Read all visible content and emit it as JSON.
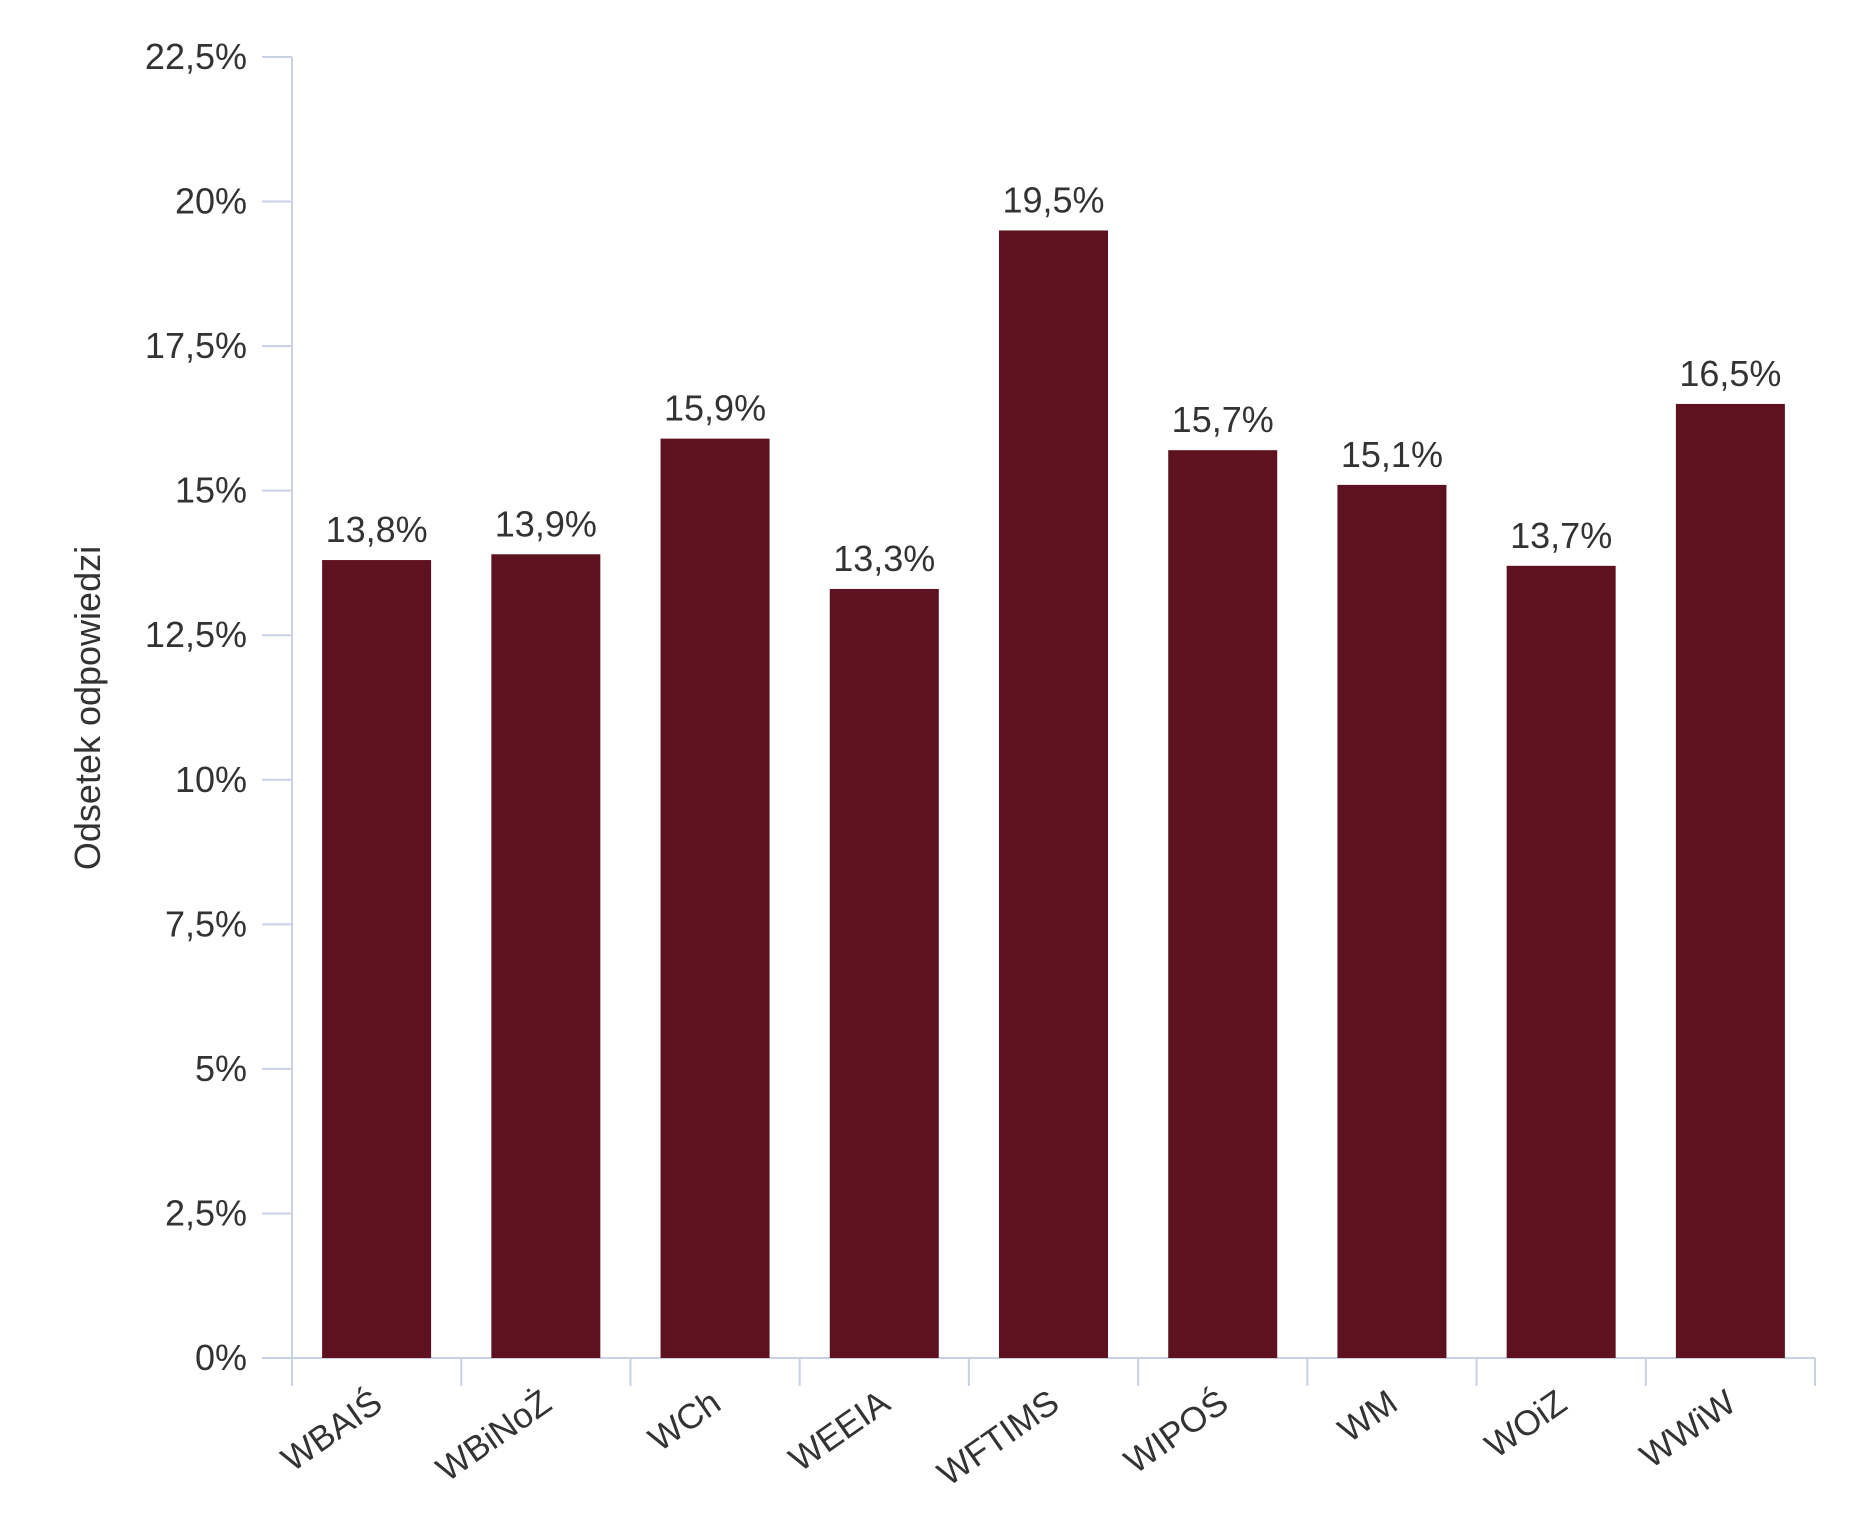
{
  "chart_data": {
    "type": "bar",
    "title": "",
    "xlabel": "",
    "ylabel": "Odsetek odpowiedzi",
    "categories": [
      "WBAIŚ",
      "WBiNoŻ",
      "WCh",
      "WEEIA",
      "WFTIMS",
      "WIPOŚ",
      "WM",
      "WOiZ",
      "WWiW"
    ],
    "values": [
      13.8,
      13.9,
      15.9,
      13.3,
      19.5,
      15.7,
      15.1,
      13.7,
      16.5
    ],
    "value_labels": [
      "13,8%",
      "13,9%",
      "15,9%",
      "13,3%",
      "19,5%",
      "15,7%",
      "15,1%",
      "13,7%",
      "16,5%"
    ],
    "ylim": [
      0,
      22.5
    ],
    "yticks": [
      0,
      2.5,
      5,
      7.5,
      10,
      12.5,
      15,
      17.5,
      20,
      22.5
    ],
    "ytick_labels": [
      "0%",
      "2,5%",
      "5%",
      "7,5%",
      "10%",
      "12,5%",
      "15%",
      "17,5%",
      "20%",
      "22,5%"
    ],
    "grid": false,
    "legend": "none",
    "colors": {
      "bar": "#5e111e",
      "axis": "#c8d1e6",
      "text": "#333333"
    }
  }
}
